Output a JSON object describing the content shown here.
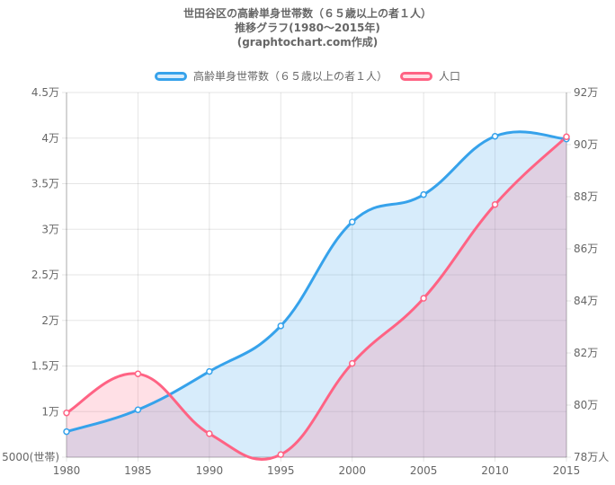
{
  "chart_data": {
    "type": "line",
    "title_lines": [
      "世田谷区の高齢単身世帯数（６５歳以上の者１人）",
      "推移グラフ(1980～2015年)",
      "(graphtochart.com作成)"
    ],
    "categories": [
      "1980",
      "1985",
      "1990",
      "1995",
      "2000",
      "2005",
      "2010",
      "2015"
    ],
    "series": [
      {
        "name": "高齢単身世帯数（６５歳以上の者１人）",
        "axis": "left",
        "values": [
          7800,
          10200,
          14400,
          19400,
          30800,
          33800,
          40200,
          39900
        ],
        "line_color": "#36a2eb",
        "fill_color": "rgba(54,162,235,0.2)"
      },
      {
        "name": "人口",
        "axis": "right",
        "values": [
          797000,
          812000,
          789000,
          781000,
          816000,
          841000,
          877000,
          903000
        ],
        "line_color": "#ff6384",
        "fill_color": "rgba(255,99,132,0.2)"
      }
    ],
    "y_left": {
      "min": 5000,
      "max": 45000,
      "ticks": [
        5000,
        10000,
        15000,
        20000,
        25000,
        30000,
        35000,
        40000,
        45000
      ],
      "tick_labels": [
        "5000(世帯)",
        "1万",
        "1.5万",
        "2万",
        "2.5万",
        "3万",
        "3.5万",
        "4万",
        "4.5万"
      ]
    },
    "y_right": {
      "min": 780000,
      "max": 920000,
      "ticks": [
        780000,
        800000,
        820000,
        840000,
        860000,
        880000,
        900000,
        920000
      ],
      "tick_labels": [
        "78万人",
        "80万",
        "82万",
        "84万",
        "86万",
        "88万",
        "90万",
        "92万"
      ]
    },
    "grid": true,
    "legend_position": "top"
  }
}
